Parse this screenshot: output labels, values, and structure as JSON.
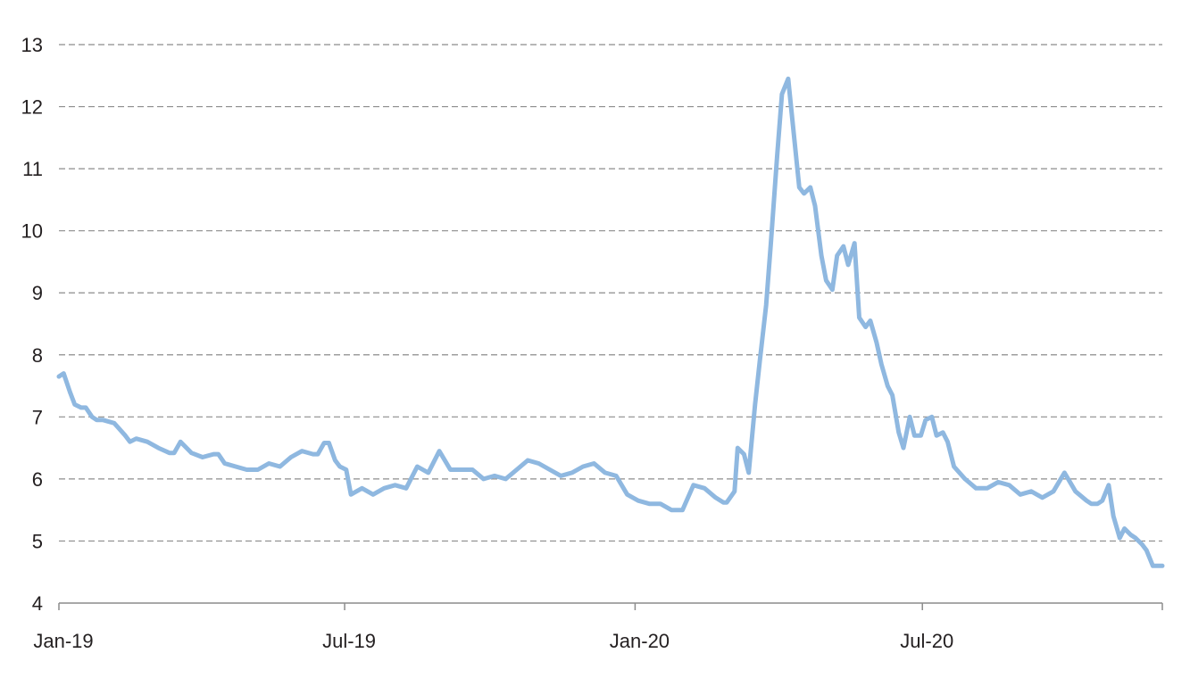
{
  "chart_data": {
    "type": "line",
    "title": "",
    "xlabel": "",
    "ylabel": "",
    "ylim": [
      4,
      13
    ],
    "yticks": [
      "4",
      "5",
      "6",
      "7",
      "8",
      "9",
      "10",
      "11",
      "12",
      "13"
    ],
    "xticks": [
      {
        "label": "Jan-19",
        "date": "2019-01-01"
      },
      {
        "label": "Jul-19",
        "date": "2019-07-01"
      },
      {
        "label": "Jan-20",
        "date": "2020-01-01"
      },
      {
        "label": "Jul-20",
        "date": "2020-07-01"
      }
    ],
    "xlim": [
      "2019-01-01",
      "2020-11-30"
    ],
    "grid": true,
    "line_color": "#8fb8e0",
    "series": [
      {
        "x": [
          "2019-01-01",
          "2019-01-04",
          "2019-01-08",
          "2019-01-11",
          "2019-01-15",
          "2019-01-18",
          "2019-01-22",
          "2019-01-25",
          "2019-01-29",
          "2019-02-05",
          "2019-02-12",
          "2019-02-15",
          "2019-02-19",
          "2019-02-26",
          "2019-03-05",
          "2019-03-12",
          "2019-03-15",
          "2019-03-19",
          "2019-03-26",
          "2019-04-02",
          "2019-04-09",
          "2019-04-12",
          "2019-04-16",
          "2019-04-23",
          "2019-04-30",
          "2019-05-07",
          "2019-05-14",
          "2019-05-21",
          "2019-05-28",
          "2019-06-04",
          "2019-06-11",
          "2019-06-14",
          "2019-06-18",
          "2019-06-21",
          "2019-06-25",
          "2019-06-28",
          "2019-07-02",
          "2019-07-05",
          "2019-07-12",
          "2019-07-19",
          "2019-07-26",
          "2019-08-02",
          "2019-08-09",
          "2019-08-16",
          "2019-08-23",
          "2019-08-30",
          "2019-09-06",
          "2019-09-13",
          "2019-09-20",
          "2019-09-27",
          "2019-10-04",
          "2019-10-11",
          "2019-10-18",
          "2019-10-25",
          "2019-11-01",
          "2019-11-08",
          "2019-11-15",
          "2019-11-22",
          "2019-11-29",
          "2019-12-06",
          "2019-12-13",
          "2019-12-20",
          "2019-12-27",
          "2020-01-03",
          "2020-01-10",
          "2020-01-17",
          "2020-01-24",
          "2020-01-31",
          "2020-02-07",
          "2020-02-14",
          "2020-02-21",
          "2020-02-26",
          "2020-02-28",
          "2020-03-04",
          "2020-03-06",
          "2020-03-10",
          "2020-03-13",
          "2020-03-17",
          "2020-03-20",
          "2020-03-24",
          "2020-03-27",
          "2020-03-31",
          "2020-04-03",
          "2020-04-07",
          "2020-04-10",
          "2020-04-14",
          "2020-04-17",
          "2020-04-21",
          "2020-04-24",
          "2020-04-28",
          "2020-05-01",
          "2020-05-05",
          "2020-05-08",
          "2020-05-12",
          "2020-05-15",
          "2020-05-19",
          "2020-05-22",
          "2020-05-26",
          "2020-05-29",
          "2020-06-02",
          "2020-06-05",
          "2020-06-09",
          "2020-06-12",
          "2020-06-16",
          "2020-06-19",
          "2020-06-23",
          "2020-06-26",
          "2020-06-30",
          "2020-07-03",
          "2020-07-07",
          "2020-07-10",
          "2020-07-14",
          "2020-07-17",
          "2020-07-21",
          "2020-07-28",
          "2020-08-04",
          "2020-08-11",
          "2020-08-18",
          "2020-08-25",
          "2020-09-01",
          "2020-09-08",
          "2020-09-15",
          "2020-09-22",
          "2020-09-29",
          "2020-10-06",
          "2020-10-13",
          "2020-10-16",
          "2020-10-20",
          "2020-10-23",
          "2020-10-27",
          "2020-10-30",
          "2020-11-03",
          "2020-11-06",
          "2020-11-10",
          "2020-11-13",
          "2020-11-17",
          "2020-11-20",
          "2020-11-24",
          "2020-11-30"
        ],
        "y": [
          7.65,
          7.7,
          7.4,
          7.2,
          7.15,
          7.15,
          7.0,
          6.95,
          6.95,
          6.9,
          6.7,
          6.6,
          6.65,
          6.6,
          6.5,
          6.42,
          6.42,
          6.6,
          6.42,
          6.35,
          6.4,
          6.4,
          6.25,
          6.2,
          6.15,
          6.15,
          6.25,
          6.2,
          6.35,
          6.45,
          6.4,
          6.4,
          6.58,
          6.58,
          6.3,
          6.2,
          6.15,
          5.75,
          5.85,
          5.75,
          5.85,
          5.9,
          5.85,
          6.2,
          6.1,
          6.45,
          6.15,
          6.15,
          6.15,
          6.0,
          6.05,
          6.0,
          6.15,
          6.3,
          6.25,
          6.15,
          6.05,
          6.1,
          6.2,
          6.25,
          6.1,
          6.05,
          5.75,
          5.65,
          5.6,
          5.6,
          5.5,
          5.5,
          5.9,
          5.85,
          5.7,
          5.62,
          5.62,
          5.8,
          6.5,
          6.4,
          6.1,
          7.2,
          7.9,
          8.8,
          9.8,
          11.2,
          12.2,
          12.45,
          11.7,
          10.7,
          10.6,
          10.7,
          10.4,
          9.6,
          9.2,
          9.05,
          9.6,
          9.75,
          9.45,
          9.8,
          8.6,
          8.45,
          8.55,
          8.2,
          7.85,
          7.5,
          7.35,
          6.75,
          6.5,
          7.0,
          6.7,
          6.7,
          6.95,
          7.0,
          6.7,
          6.75,
          6.6,
          6.2,
          6.0,
          5.85,
          5.85,
          5.95,
          5.9,
          5.75,
          5.8,
          5.7,
          5.8,
          6.1,
          5.8,
          5.65,
          5.6,
          5.6,
          5.65,
          5.9,
          5.4,
          5.05,
          5.2,
          5.1,
          5.05,
          4.95,
          4.85,
          4.6,
          4.6
        ]
      }
    ]
  }
}
